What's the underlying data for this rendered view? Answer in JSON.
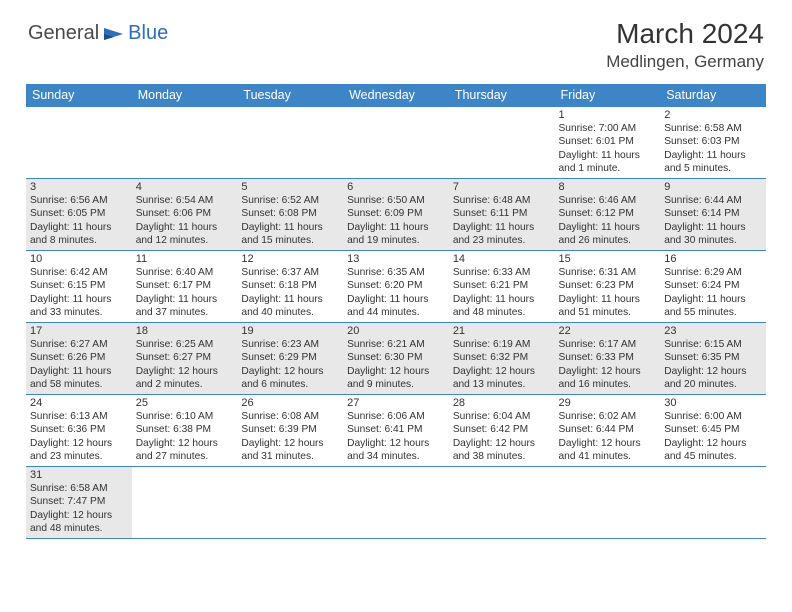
{
  "logo": {
    "text1": "General",
    "text2": "Blue"
  },
  "title": "March 2024",
  "location": "Medlingen, Germany",
  "colors": {
    "header_bg": "#3d85c6",
    "header_fg": "#ffffff",
    "alt_row_bg": "#e8e8e8",
    "border": "#3d85c6",
    "text": "#333333",
    "logo_gray": "#4a4a4a",
    "logo_blue": "#2d6fb8",
    "page_bg": "#ffffff"
  },
  "typography": {
    "title_fontsize": 28,
    "location_fontsize": 17,
    "header_fontsize": 12.5,
    "daynum_fontsize": 11,
    "body_fontsize": 10.2
  },
  "headers": [
    "Sunday",
    "Monday",
    "Tuesday",
    "Wednesday",
    "Thursday",
    "Friday",
    "Saturday"
  ],
  "weeks": [
    [
      null,
      null,
      null,
      null,
      null,
      {
        "n": "1",
        "sr": "Sunrise: 7:00 AM",
        "ss": "Sunset: 6:01 PM",
        "d1": "Daylight: 11 hours",
        "d2": "and 1 minute."
      },
      {
        "n": "2",
        "sr": "Sunrise: 6:58 AM",
        "ss": "Sunset: 6:03 PM",
        "d1": "Daylight: 11 hours",
        "d2": "and 5 minutes."
      }
    ],
    [
      {
        "n": "3",
        "sr": "Sunrise: 6:56 AM",
        "ss": "Sunset: 6:05 PM",
        "d1": "Daylight: 11 hours",
        "d2": "and 8 minutes."
      },
      {
        "n": "4",
        "sr": "Sunrise: 6:54 AM",
        "ss": "Sunset: 6:06 PM",
        "d1": "Daylight: 11 hours",
        "d2": "and 12 minutes."
      },
      {
        "n": "5",
        "sr": "Sunrise: 6:52 AM",
        "ss": "Sunset: 6:08 PM",
        "d1": "Daylight: 11 hours",
        "d2": "and 15 minutes."
      },
      {
        "n": "6",
        "sr": "Sunrise: 6:50 AM",
        "ss": "Sunset: 6:09 PM",
        "d1": "Daylight: 11 hours",
        "d2": "and 19 minutes."
      },
      {
        "n": "7",
        "sr": "Sunrise: 6:48 AM",
        "ss": "Sunset: 6:11 PM",
        "d1": "Daylight: 11 hours",
        "d2": "and 23 minutes."
      },
      {
        "n": "8",
        "sr": "Sunrise: 6:46 AM",
        "ss": "Sunset: 6:12 PM",
        "d1": "Daylight: 11 hours",
        "d2": "and 26 minutes."
      },
      {
        "n": "9",
        "sr": "Sunrise: 6:44 AM",
        "ss": "Sunset: 6:14 PM",
        "d1": "Daylight: 11 hours",
        "d2": "and 30 minutes."
      }
    ],
    [
      {
        "n": "10",
        "sr": "Sunrise: 6:42 AM",
        "ss": "Sunset: 6:15 PM",
        "d1": "Daylight: 11 hours",
        "d2": "and 33 minutes."
      },
      {
        "n": "11",
        "sr": "Sunrise: 6:40 AM",
        "ss": "Sunset: 6:17 PM",
        "d1": "Daylight: 11 hours",
        "d2": "and 37 minutes."
      },
      {
        "n": "12",
        "sr": "Sunrise: 6:37 AM",
        "ss": "Sunset: 6:18 PM",
        "d1": "Daylight: 11 hours",
        "d2": "and 40 minutes."
      },
      {
        "n": "13",
        "sr": "Sunrise: 6:35 AM",
        "ss": "Sunset: 6:20 PM",
        "d1": "Daylight: 11 hours",
        "d2": "and 44 minutes."
      },
      {
        "n": "14",
        "sr": "Sunrise: 6:33 AM",
        "ss": "Sunset: 6:21 PM",
        "d1": "Daylight: 11 hours",
        "d2": "and 48 minutes."
      },
      {
        "n": "15",
        "sr": "Sunrise: 6:31 AM",
        "ss": "Sunset: 6:23 PM",
        "d1": "Daylight: 11 hours",
        "d2": "and 51 minutes."
      },
      {
        "n": "16",
        "sr": "Sunrise: 6:29 AM",
        "ss": "Sunset: 6:24 PM",
        "d1": "Daylight: 11 hours",
        "d2": "and 55 minutes."
      }
    ],
    [
      {
        "n": "17",
        "sr": "Sunrise: 6:27 AM",
        "ss": "Sunset: 6:26 PM",
        "d1": "Daylight: 11 hours",
        "d2": "and 58 minutes."
      },
      {
        "n": "18",
        "sr": "Sunrise: 6:25 AM",
        "ss": "Sunset: 6:27 PM",
        "d1": "Daylight: 12 hours",
        "d2": "and 2 minutes."
      },
      {
        "n": "19",
        "sr": "Sunrise: 6:23 AM",
        "ss": "Sunset: 6:29 PM",
        "d1": "Daylight: 12 hours",
        "d2": "and 6 minutes."
      },
      {
        "n": "20",
        "sr": "Sunrise: 6:21 AM",
        "ss": "Sunset: 6:30 PM",
        "d1": "Daylight: 12 hours",
        "d2": "and 9 minutes."
      },
      {
        "n": "21",
        "sr": "Sunrise: 6:19 AM",
        "ss": "Sunset: 6:32 PM",
        "d1": "Daylight: 12 hours",
        "d2": "and 13 minutes."
      },
      {
        "n": "22",
        "sr": "Sunrise: 6:17 AM",
        "ss": "Sunset: 6:33 PM",
        "d1": "Daylight: 12 hours",
        "d2": "and 16 minutes."
      },
      {
        "n": "23",
        "sr": "Sunrise: 6:15 AM",
        "ss": "Sunset: 6:35 PM",
        "d1": "Daylight: 12 hours",
        "d2": "and 20 minutes."
      }
    ],
    [
      {
        "n": "24",
        "sr": "Sunrise: 6:13 AM",
        "ss": "Sunset: 6:36 PM",
        "d1": "Daylight: 12 hours",
        "d2": "and 23 minutes."
      },
      {
        "n": "25",
        "sr": "Sunrise: 6:10 AM",
        "ss": "Sunset: 6:38 PM",
        "d1": "Daylight: 12 hours",
        "d2": "and 27 minutes."
      },
      {
        "n": "26",
        "sr": "Sunrise: 6:08 AM",
        "ss": "Sunset: 6:39 PM",
        "d1": "Daylight: 12 hours",
        "d2": "and 31 minutes."
      },
      {
        "n": "27",
        "sr": "Sunrise: 6:06 AM",
        "ss": "Sunset: 6:41 PM",
        "d1": "Daylight: 12 hours",
        "d2": "and 34 minutes."
      },
      {
        "n": "28",
        "sr": "Sunrise: 6:04 AM",
        "ss": "Sunset: 6:42 PM",
        "d1": "Daylight: 12 hours",
        "d2": "and 38 minutes."
      },
      {
        "n": "29",
        "sr": "Sunrise: 6:02 AM",
        "ss": "Sunset: 6:44 PM",
        "d1": "Daylight: 12 hours",
        "d2": "and 41 minutes."
      },
      {
        "n": "30",
        "sr": "Sunrise: 6:00 AM",
        "ss": "Sunset: 6:45 PM",
        "d1": "Daylight: 12 hours",
        "d2": "and 45 minutes."
      }
    ],
    [
      {
        "n": "31",
        "sr": "Sunrise: 6:58 AM",
        "ss": "Sunset: 7:47 PM",
        "d1": "Daylight: 12 hours",
        "d2": "and 48 minutes."
      },
      null,
      null,
      null,
      null,
      null,
      null
    ]
  ]
}
